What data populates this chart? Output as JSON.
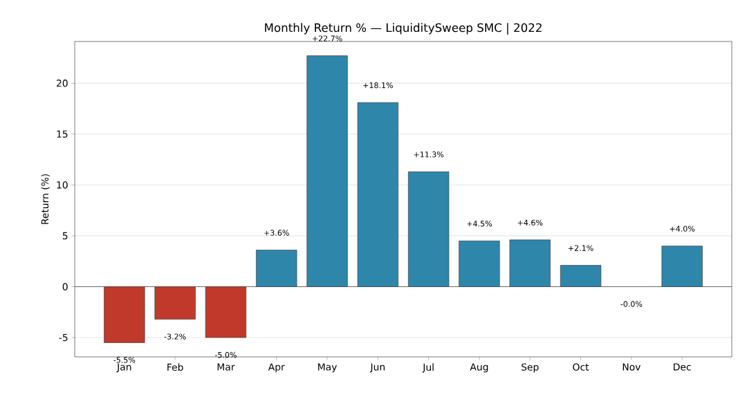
{
  "chart_data": {
    "type": "bar",
    "title": "Monthly Return % — LiquiditySweep SMC | 2022",
    "ylabel": "Return (%)",
    "categories": [
      "Jan",
      "Feb",
      "Mar",
      "Apr",
      "May",
      "Jun",
      "Jul",
      "Aug",
      "Sep",
      "Oct",
      "Nov",
      "Dec"
    ],
    "values": [
      -5.5,
      -3.2,
      -5.0,
      3.6,
      22.7,
      18.1,
      11.3,
      4.5,
      4.6,
      2.1,
      -0.0,
      4.0
    ],
    "value_labels": [
      "-5.5%",
      "-3.2%",
      "-5.0%",
      "+3.6%",
      "+22.7%",
      "+18.1%",
      "+11.3%",
      "+4.5%",
      "+4.6%",
      "+2.1%",
      "-0.0%",
      "+4.0%"
    ],
    "colors": [
      "#c0392b",
      "#c0392b",
      "#c0392b",
      "#2e86ab",
      "#2e86ab",
      "#2e86ab",
      "#2e86ab",
      "#2e86ab",
      "#2e86ab",
      "#2e86ab",
      "#c0392b",
      "#2e86ab"
    ],
    "ylim": [
      -6.9,
      24.1
    ],
    "yticks": [
      -5,
      0,
      5,
      10,
      15,
      20
    ],
    "grid": "y",
    "ref_lines": [
      {
        "axis": "y",
        "value": 0,
        "color": "#666666"
      }
    ]
  }
}
